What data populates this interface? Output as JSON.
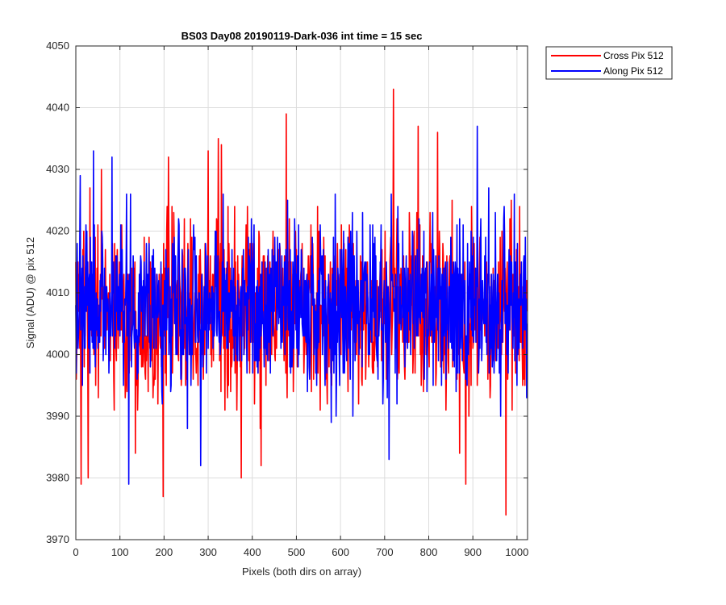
{
  "chart_data": {
    "type": "line",
    "title": "BS03 Day08 20190119-Dark-036 int time = 15 sec",
    "xlabel": "Pixels (both dirs on array)",
    "ylabel": "Signal (ADU) @ pix 512",
    "xlim": [
      0,
      1024
    ],
    "ylim": [
      3970,
      4050
    ],
    "xticks": [
      0,
      100,
      200,
      300,
      400,
      500,
      600,
      700,
      800,
      900,
      1000
    ],
    "yticks": [
      3970,
      3980,
      3990,
      4000,
      4010,
      4020,
      4030,
      4040,
      4050
    ],
    "grid": true,
    "legend_position": "outside-top-right",
    "series": [
      {
        "name": "Cross Pix 512",
        "color": "#ff0000",
        "generated": true,
        "n_points": 1024,
        "mean": 4007,
        "spread": 7,
        "extremes": [
          {
            "x": 12,
            "y": 3979
          },
          {
            "x": 28,
            "y": 3980
          },
          {
            "x": 32,
            "y": 4027
          },
          {
            "x": 58,
            "y": 4030
          },
          {
            "x": 135,
            "y": 3984
          },
          {
            "x": 198,
            "y": 3977
          },
          {
            "x": 210,
            "y": 4032
          },
          {
            "x": 300,
            "y": 4033
          },
          {
            "x": 323,
            "y": 4035
          },
          {
            "x": 330,
            "y": 4034
          },
          {
            "x": 375,
            "y": 3980
          },
          {
            "x": 420,
            "y": 3982
          },
          {
            "x": 477,
            "y": 4039
          },
          {
            "x": 720,
            "y": 4043
          },
          {
            "x": 776,
            "y": 4037
          },
          {
            "x": 820,
            "y": 4036
          },
          {
            "x": 870,
            "y": 3984
          },
          {
            "x": 884,
            "y": 3979
          },
          {
            "x": 975,
            "y": 3974
          },
          {
            "x": 987,
            "y": 4025
          }
        ]
      },
      {
        "name": "Along Pix 512",
        "color": "#0000ff",
        "generated": true,
        "n_points": 1024,
        "mean": 4008,
        "spread": 6.5,
        "extremes": [
          {
            "x": 40,
            "y": 4033
          },
          {
            "x": 82,
            "y": 4032
          },
          {
            "x": 120,
            "y": 3979
          },
          {
            "x": 283,
            "y": 3982
          },
          {
            "x": 590,
            "y": 3990
          },
          {
            "x": 710,
            "y": 3983
          },
          {
            "x": 910,
            "y": 4037
          },
          {
            "x": 1000,
            "y": 3995
          }
        ]
      }
    ]
  }
}
